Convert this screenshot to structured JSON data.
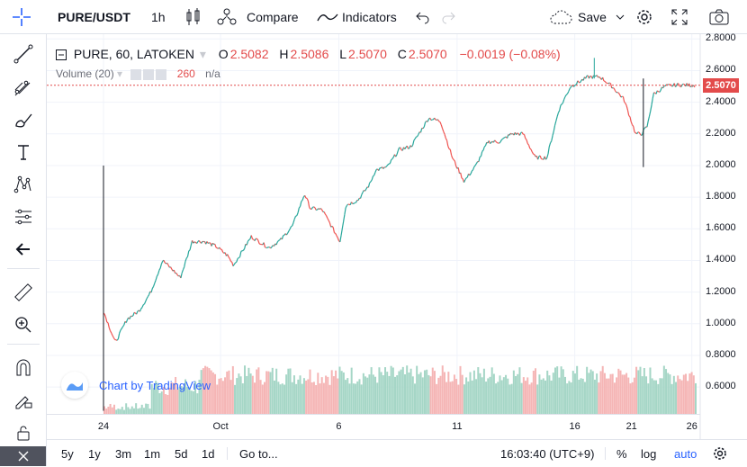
{
  "toolbar": {
    "symbol": "PURE/USDT",
    "interval": "1h",
    "compare_label": "Compare",
    "indicators_label": "Indicators",
    "save_label": "Save"
  },
  "legend": {
    "title": "PURE, 60, LATOKEN",
    "open_label": "O",
    "open": "2.5082",
    "high_label": "H",
    "high": "2.5086",
    "low_label": "L",
    "low": "2.5070",
    "close_label": "C",
    "close": "2.5070",
    "change": "−0.0019 (−0.08%)",
    "volume_label": "Volume (20)",
    "volume_value": "260",
    "volume_ma": "n/a"
  },
  "last_price": "2.5070",
  "y_axis": [
    "2.8000",
    "2.6000",
    "2.4000",
    "2.2000",
    "2.0000",
    "1.8000",
    "1.6000",
    "1.4000",
    "1.2000",
    "1.0000",
    "0.8000",
    "0.6000"
  ],
  "x_axis": [
    "24",
    "Oct",
    "6",
    "11",
    "16",
    "21",
    "26"
  ],
  "watermark": "Chart by TradingView",
  "bottom": {
    "ranges": [
      "5y",
      "1y",
      "3m",
      "1m",
      "5d",
      "1d"
    ],
    "goto_label": "Go to...",
    "time": "16:03:40 (UTC+9)",
    "percent_label": "%",
    "log_label": "log",
    "auto_label": "auto"
  },
  "colors": {
    "up": "#26a69a",
    "down": "#ef5350",
    "vol_up": "#a5d6c6",
    "vol_down": "#f5b5b5",
    "accent": "#2962ff",
    "last_price": "#e34b4b"
  },
  "chart_data": {
    "type": "line",
    "x_labels": [
      "24",
      "Oct",
      "6",
      "11",
      "16",
      "21",
      "26"
    ],
    "ylim": [
      0.43,
      2.83
    ],
    "series": [
      {
        "x": [
          0,
          0.02,
          0.04,
          0.06,
          0.08,
          0.1,
          0.12,
          0.13,
          0.15,
          0.17,
          0.19,
          0.21,
          0.22,
          0.25,
          0.28,
          0.3,
          0.32,
          0.34,
          0.35,
          0.37,
          0.4,
          0.41,
          0.43,
          0.45,
          0.46,
          0.48,
          0.5,
          0.52,
          0.55,
          0.57,
          0.59,
          0.61,
          0.63,
          0.65,
          0.67,
          0.69,
          0.71,
          0.73,
          0.75,
          0.77,
          0.79,
          0.82,
          0.84,
          0.86,
          0.88,
          0.9,
          0.91,
          0.92,
          0.93,
          0.95,
          0.97,
          1.0
        ],
        "y": [
          1.08,
          0.88,
          1.03,
          1.08,
          1.2,
          1.4,
          1.33,
          1.29,
          1.52,
          1.52,
          1.49,
          1.43,
          1.37,
          1.55,
          1.48,
          1.53,
          1.62,
          1.82,
          1.73,
          1.72,
          1.52,
          1.75,
          1.78,
          1.88,
          1.97,
          1.99,
          2.1,
          2.12,
          2.3,
          2.28,
          2.05,
          1.9,
          2.0,
          2.15,
          2.15,
          2.2,
          2.2,
          2.05,
          2.05,
          2.35,
          2.5,
          2.56,
          2.56,
          2.5,
          2.42,
          2.2,
          2.2,
          2.25,
          2.45,
          2.5,
          2.51,
          2.507
        ]
      }
    ]
  }
}
